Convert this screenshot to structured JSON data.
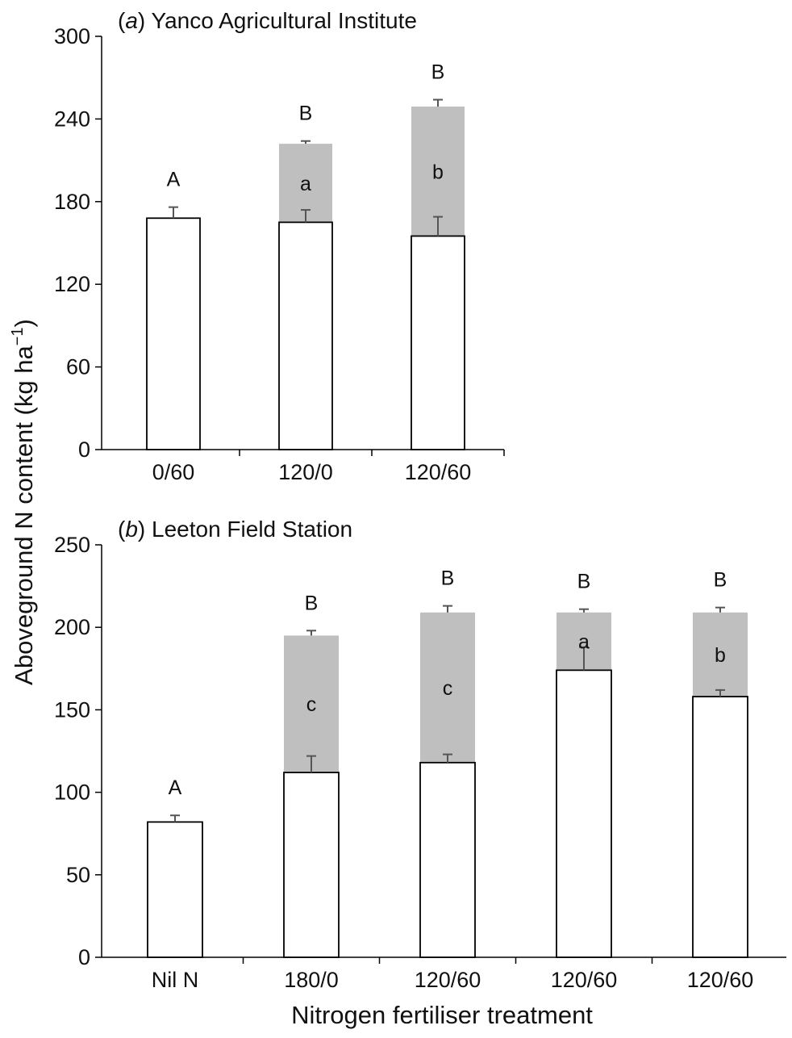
{
  "ylabel_main": "Aboveground N content (kg ha",
  "ylabel_sup": "−1",
  "ylabel_close": ")",
  "xlabel": "Nitrogen fertiliser treatment",
  "colors": {
    "base": "#ffffff",
    "stack": "#bfbfbf",
    "outline": "#000000",
    "error": "#555555"
  },
  "chart_data": [
    {
      "type": "bar",
      "panel_letter": "a",
      "title": "Yanco Agricultural Institute",
      "categories": [
        "0/60",
        "120/0",
        "120/60"
      ],
      "ylim": [
        0,
        300
      ],
      "yticks": [
        0,
        60,
        120,
        180,
        240,
        300
      ],
      "base_values": [
        168,
        165,
        155
      ],
      "base_errors": [
        8,
        9,
        14
      ],
      "top_values": [
        null,
        222,
        249
      ],
      "top_errors": [
        null,
        2,
        5
      ],
      "top_labels": [
        "A",
        "B",
        "B"
      ],
      "stack_labels": [
        "",
        "a",
        "b"
      ]
    },
    {
      "type": "bar",
      "panel_letter": "b",
      "title": "Leeton Field Station",
      "categories": [
        "Nil N",
        "180/0",
        "120/60",
        "120/60",
        "120/60"
      ],
      "ylim": [
        0,
        250
      ],
      "yticks": [
        0,
        50,
        100,
        150,
        200,
        250
      ],
      "base_values": [
        82,
        112,
        118,
        174,
        158
      ],
      "base_errors": [
        4,
        10,
        5,
        14,
        4
      ],
      "top_values": [
        null,
        195,
        209,
        209,
        209
      ],
      "top_errors": [
        null,
        3,
        4,
        2,
        3
      ],
      "top_labels": [
        "A",
        "B",
        "B",
        "B",
        "B"
      ],
      "stack_labels": [
        "",
        "c",
        "c",
        "a",
        "b"
      ]
    }
  ]
}
